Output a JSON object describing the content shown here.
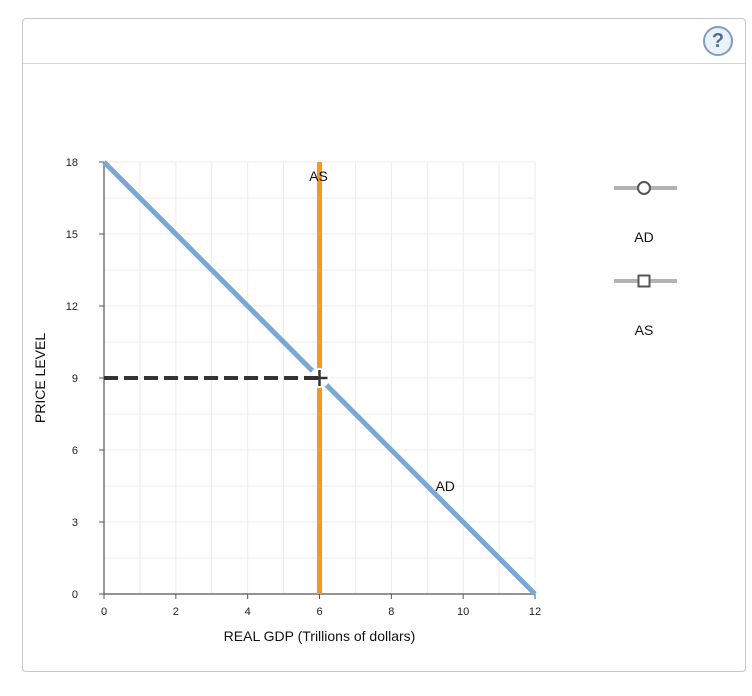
{
  "help": {
    "label": "?"
  },
  "chart_data": {
    "type": "line",
    "xlabel": "REAL GDP (Trillions of dollars)",
    "ylabel": "PRICE LEVEL",
    "xlim": [
      0,
      12
    ],
    "ylim": [
      0,
      18
    ],
    "xticks": [
      0,
      2,
      4,
      6,
      8,
      10,
      12
    ],
    "yticks": [
      0,
      3,
      6,
      9,
      12,
      15,
      18
    ],
    "grid": true,
    "series": [
      {
        "name": "AD",
        "color": "#7ba7d7",
        "marker": "circle",
        "points": [
          [
            0,
            18
          ],
          [
            12,
            0
          ]
        ]
      },
      {
        "name": "AS",
        "color": "#f39a1e",
        "marker": "square",
        "points": [
          [
            6,
            0
          ],
          [
            6,
            18
          ]
        ]
      }
    ],
    "equilibrium": {
      "x": 6,
      "y": 9,
      "marker": "cross"
    },
    "guide_line": {
      "style": "dashed",
      "color": "#333333",
      "from": [
        0,
        9
      ],
      "to": [
        6,
        9
      ]
    },
    "legend": {
      "placement": "right",
      "items": [
        {
          "label": "AD",
          "marker": "circle"
        },
        {
          "label": "AS",
          "marker": "square"
        }
      ]
    }
  }
}
